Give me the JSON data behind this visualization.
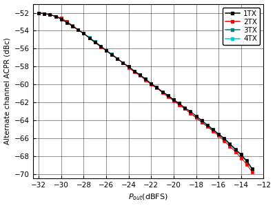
{
  "title": "",
  "xlabel": "Pout(dBFS)",
  "ylabel": "Alternate channel ACPR (dBc)",
  "xlim": [
    -32.5,
    -12.0
  ],
  "ylim": [
    -70.5,
    -51.0
  ],
  "xticks": [
    -32,
    -30,
    -28,
    -26,
    -24,
    -22,
    -20,
    -18,
    -16,
    -14,
    -12
  ],
  "yticks": [
    -70,
    -68,
    -66,
    -64,
    -62,
    -60,
    -58,
    -56,
    -54,
    -52
  ],
  "series": [
    {
      "label": "1TX",
      "color": "#000000",
      "zorder": 4,
      "x": [
        -32.0,
        -31.5,
        -31.0,
        -30.5,
        -30.0,
        -29.5,
        -29.0,
        -28.5,
        -28.0,
        -27.5,
        -27.0,
        -26.5,
        -26.0,
        -25.5,
        -25.0,
        -24.5,
        -24.0,
        -23.5,
        -23.0,
        -22.5,
        -22.0,
        -21.5,
        -21.0,
        -20.5,
        -20.0,
        -19.5,
        -19.0,
        -18.5,
        -18.0,
        -17.5,
        -17.0,
        -16.5,
        -16.0,
        -15.5,
        -15.0,
        -14.5,
        -14.0,
        -13.5,
        -13.0
      ],
      "y": [
        -52.0,
        -52.1,
        -52.2,
        -52.4,
        -52.7,
        -53.1,
        -53.5,
        -53.9,
        -54.3,
        -54.8,
        -55.3,
        -55.7,
        -56.2,
        -56.7,
        -57.1,
        -57.6,
        -58.0,
        -58.5,
        -58.9,
        -59.4,
        -59.9,
        -60.3,
        -60.8,
        -61.2,
        -61.7,
        -62.1,
        -62.6,
        -63.0,
        -63.5,
        -64.0,
        -64.5,
        -65.0,
        -65.5,
        -66.0,
        -66.6,
        -67.2,
        -67.8,
        -68.5,
        -69.4
      ]
    },
    {
      "label": "2TX",
      "color": "#ff0000",
      "zorder": 3,
      "x": [
        -32.0,
        -31.5,
        -31.0,
        -30.5,
        -30.0,
        -29.5,
        -29.0,
        -28.5,
        -28.0,
        -27.5,
        -27.0,
        -26.5,
        -26.0,
        -25.5,
        -25.0,
        -24.5,
        -24.0,
        -23.5,
        -23.0,
        -22.5,
        -22.0,
        -21.5,
        -21.0,
        -20.5,
        -20.0,
        -19.5,
        -19.0,
        -18.5,
        -18.0,
        -17.5,
        -17.0,
        -16.5,
        -16.0,
        -15.5,
        -15.0,
        -14.5,
        -14.0,
        -13.5,
        -13.0
      ],
      "y": [
        -52.0,
        -52.1,
        -52.2,
        -52.4,
        -52.6,
        -53.0,
        -53.4,
        -53.9,
        -54.3,
        -54.8,
        -55.3,
        -55.8,
        -56.2,
        -56.7,
        -57.1,
        -57.6,
        -58.1,
        -58.6,
        -59.0,
        -59.5,
        -60.0,
        -60.4,
        -60.9,
        -61.4,
        -61.8,
        -62.3,
        -62.7,
        -63.2,
        -63.7,
        -64.2,
        -64.7,
        -65.2,
        -65.7,
        -66.3,
        -66.9,
        -67.5,
        -68.2,
        -68.9,
        -69.8
      ]
    },
    {
      "label": "3TX",
      "color": "#008080",
      "zorder": 2,
      "x": [
        -32.0,
        -31.5,
        -31.0,
        -30.5,
        -30.0,
        -29.5,
        -29.0,
        -28.5,
        -28.0,
        -27.5,
        -27.0,
        -26.5,
        -26.0,
        -25.5,
        -25.0,
        -24.5,
        -24.0,
        -23.5,
        -23.0,
        -22.5,
        -22.0,
        -21.5,
        -21.0,
        -20.5,
        -20.0,
        -19.5,
        -19.0,
        -18.5,
        -18.0,
        -17.5,
        -17.0,
        -16.5,
        -16.0,
        -15.5,
        -15.0,
        -14.5,
        -14.0,
        -13.5,
        -13.0
      ],
      "y": [
        -52.0,
        -52.1,
        -52.2,
        -52.4,
        -52.6,
        -53.0,
        -53.4,
        -53.9,
        -54.3,
        -54.8,
        -55.2,
        -55.7,
        -56.2,
        -56.6,
        -57.1,
        -57.6,
        -58.0,
        -58.5,
        -59.0,
        -59.4,
        -59.9,
        -60.4,
        -60.8,
        -61.3,
        -61.7,
        -62.2,
        -62.7,
        -63.2,
        -63.7,
        -64.2,
        -64.7,
        -65.1,
        -65.6,
        -66.1,
        -66.7,
        -67.3,
        -67.9,
        -68.6,
        -69.5
      ]
    },
    {
      "label": "4TX",
      "color": "#00d0d0",
      "zorder": 1,
      "x": [
        -32.0,
        -31.5,
        -31.0,
        -30.5,
        -30.0,
        -29.5,
        -29.0,
        -28.5,
        -28.0,
        -27.5,
        -27.0,
        -26.5,
        -26.0,
        -25.5,
        -25.0,
        -24.5,
        -24.0,
        -23.5,
        -23.0,
        -22.5,
        -22.0,
        -21.5,
        -21.0,
        -20.5,
        -20.0,
        -19.5,
        -19.0,
        -18.5,
        -18.0,
        -17.5,
        -17.0,
        -16.5,
        -16.0,
        -15.5,
        -15.0,
        -14.5,
        -14.0,
        -13.5,
        -13.0
      ],
      "y": [
        -52.0,
        -52.1,
        -52.2,
        -52.4,
        -52.6,
        -53.0,
        -53.4,
        -53.9,
        -54.3,
        -54.7,
        -55.2,
        -55.7,
        -56.2,
        -56.6,
        -57.1,
        -57.6,
        -58.0,
        -58.5,
        -58.9,
        -59.4,
        -59.9,
        -60.4,
        -60.8,
        -61.3,
        -61.7,
        -62.2,
        -62.7,
        -63.2,
        -63.6,
        -64.1,
        -64.6,
        -65.1,
        -65.6,
        -66.1,
        -66.7,
        -67.3,
        -67.9,
        -68.6,
        -69.5
      ]
    }
  ],
  "legend_loc": "upper right",
  "grid": true,
  "background_color": "#ffffff",
  "markersize": 2.5,
  "linewidth": 0.8
}
